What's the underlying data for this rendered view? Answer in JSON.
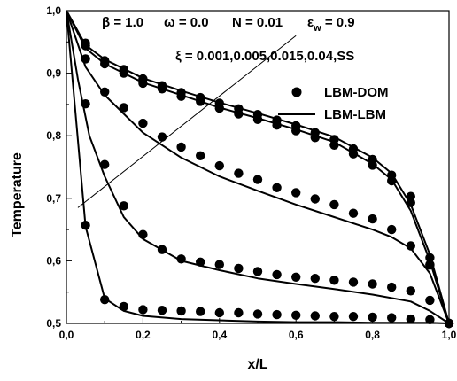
{
  "chart_data": {
    "type": "line",
    "xlabel": "x/L",
    "ylabel": "Temperature",
    "xlim": [
      0.0,
      1.0
    ],
    "ylim": [
      0.5,
      1.0
    ],
    "x_ticks": [
      "0,0",
      "0,2",
      "0,4",
      "0,6",
      "0,8",
      "1,0"
    ],
    "y_ticks": [
      "0,5",
      "0,6",
      "0,7",
      "0,8",
      "0,9",
      "1,0"
    ],
    "parameters": {
      "beta": "β = 1.0",
      "omega": "ω = 0.0",
      "N": "N = 0.01",
      "epsilon_w": "ε",
      "epsilon_w_sub": "w",
      "epsilon_w_value": " = 0.9",
      "xi": "ξ = 0.001,0.005,0.015,0.04,SS"
    },
    "legend": {
      "position": "right",
      "entries": [
        {
          "label": "LBM-DOM",
          "marker": "circle"
        },
        {
          "label": "LBM-LBM",
          "marker": "line"
        }
      ]
    },
    "series": [
      {
        "line": [
          [
            0,
            1.0
          ],
          [
            0.05,
            0.655
          ],
          [
            0.1,
            0.54
          ],
          [
            0.15,
            0.52
          ],
          [
            0.2,
            0.512
          ],
          [
            0.3,
            0.507
          ],
          [
            0.4,
            0.505
          ],
          [
            0.5,
            0.503
          ],
          [
            0.6,
            0.502
          ],
          [
            0.7,
            0.502
          ],
          [
            0.8,
            0.501
          ],
          [
            0.9,
            0.501
          ],
          [
            0.95,
            0.501
          ],
          [
            1.0,
            0.5
          ]
        ],
        "points": [
          [
            0.05,
            0.657
          ],
          [
            0.1,
            0.538
          ],
          [
            0.15,
            0.527
          ],
          [
            0.2,
            0.522
          ],
          [
            0.25,
            0.521
          ],
          [
            0.3,
            0.52
          ],
          [
            0.35,
            0.519
          ],
          [
            0.4,
            0.517
          ],
          [
            0.45,
            0.517
          ],
          [
            0.5,
            0.515
          ],
          [
            0.55,
            0.514
          ],
          [
            0.6,
            0.513
          ],
          [
            0.65,
            0.512
          ],
          [
            0.7,
            0.511
          ],
          [
            0.75,
            0.511
          ],
          [
            0.8,
            0.51
          ],
          [
            0.85,
            0.509
          ],
          [
            0.9,
            0.507
          ],
          [
            0.95,
            0.506
          ],
          [
            1.0,
            0.5
          ]
        ]
      },
      {
        "line": [
          [
            0,
            1.0
          ],
          [
            0.03,
            0.89
          ],
          [
            0.06,
            0.8
          ],
          [
            0.1,
            0.735
          ],
          [
            0.15,
            0.67
          ],
          [
            0.2,
            0.635
          ],
          [
            0.3,
            0.6
          ],
          [
            0.4,
            0.585
          ],
          [
            0.5,
            0.572
          ],
          [
            0.6,
            0.563
          ],
          [
            0.7,
            0.555
          ],
          [
            0.8,
            0.546
          ],
          [
            0.9,
            0.535
          ],
          [
            0.95,
            0.52
          ],
          [
            1.0,
            0.5
          ]
        ],
        "points": [
          [
            0.05,
            0.851
          ],
          [
            0.1,
            0.754
          ],
          [
            0.15,
            0.688
          ],
          [
            0.2,
            0.642
          ],
          [
            0.25,
            0.618
          ],
          [
            0.3,
            0.603
          ],
          [
            0.35,
            0.598
          ],
          [
            0.4,
            0.594
          ],
          [
            0.45,
            0.588
          ],
          [
            0.5,
            0.583
          ],
          [
            0.55,
            0.578
          ],
          [
            0.6,
            0.574
          ],
          [
            0.65,
            0.572
          ],
          [
            0.7,
            0.569
          ],
          [
            0.75,
            0.566
          ],
          [
            0.8,
            0.563
          ],
          [
            0.85,
            0.558
          ],
          [
            0.9,
            0.552
          ],
          [
            0.95,
            0.537
          ],
          [
            1.0,
            0.5
          ]
        ]
      },
      {
        "line": [
          [
            0,
            1.0
          ],
          [
            0.05,
            0.91
          ],
          [
            0.1,
            0.865
          ],
          [
            0.2,
            0.805
          ],
          [
            0.3,
            0.765
          ],
          [
            0.4,
            0.735
          ],
          [
            0.5,
            0.712
          ],
          [
            0.6,
            0.69
          ],
          [
            0.7,
            0.67
          ],
          [
            0.8,
            0.65
          ],
          [
            0.85,
            0.638
          ],
          [
            0.9,
            0.62
          ],
          [
            0.95,
            0.58
          ],
          [
            1.0,
            0.5
          ]
        ],
        "points": [
          [
            0.05,
            0.923
          ],
          [
            0.1,
            0.87
          ],
          [
            0.15,
            0.845
          ],
          [
            0.2,
            0.82
          ],
          [
            0.25,
            0.798
          ],
          [
            0.3,
            0.782
          ],
          [
            0.35,
            0.768
          ],
          [
            0.4,
            0.752
          ],
          [
            0.45,
            0.74
          ],
          [
            0.5,
            0.73
          ],
          [
            0.55,
            0.717
          ],
          [
            0.6,
            0.709
          ],
          [
            0.65,
            0.699
          ],
          [
            0.7,
            0.69
          ],
          [
            0.75,
            0.676
          ],
          [
            0.8,
            0.667
          ],
          [
            0.85,
            0.65
          ],
          [
            0.9,
            0.624
          ],
          [
            0.95,
            0.593
          ],
          [
            1.0,
            0.5
          ]
        ]
      },
      {
        "line": [
          [
            0,
            1.0
          ],
          [
            0.05,
            0.94
          ],
          [
            0.1,
            0.915
          ],
          [
            0.2,
            0.885
          ],
          [
            0.3,
            0.865
          ],
          [
            0.4,
            0.845
          ],
          [
            0.5,
            0.828
          ],
          [
            0.6,
            0.81
          ],
          [
            0.7,
            0.79
          ],
          [
            0.8,
            0.755
          ],
          [
            0.85,
            0.73
          ],
          [
            0.9,
            0.68
          ],
          [
            0.95,
            0.6
          ],
          [
            1.0,
            0.5
          ]
        ],
        "points": [
          [
            0.05,
            0.944
          ],
          [
            0.1,
            0.915
          ],
          [
            0.15,
            0.9
          ],
          [
            0.2,
            0.884
          ],
          [
            0.25,
            0.875
          ],
          [
            0.3,
            0.863
          ],
          [
            0.35,
            0.855
          ],
          [
            0.4,
            0.844
          ],
          [
            0.45,
            0.835
          ],
          [
            0.5,
            0.826
          ],
          [
            0.55,
            0.817
          ],
          [
            0.6,
            0.808
          ],
          [
            0.65,
            0.797
          ],
          [
            0.7,
            0.785
          ],
          [
            0.75,
            0.771
          ],
          [
            0.8,
            0.753
          ],
          [
            0.85,
            0.728
          ],
          [
            0.9,
            0.693
          ],
          [
            0.95,
            0.594
          ],
          [
            1.0,
            0.5
          ]
        ]
      },
      {
        "line": [
          [
            0,
            1.0
          ],
          [
            0.05,
            0.945
          ],
          [
            0.1,
            0.922
          ],
          [
            0.2,
            0.892
          ],
          [
            0.3,
            0.872
          ],
          [
            0.4,
            0.853
          ],
          [
            0.5,
            0.836
          ],
          [
            0.6,
            0.818
          ],
          [
            0.7,
            0.798
          ],
          [
            0.8,
            0.765
          ],
          [
            0.85,
            0.74
          ],
          [
            0.9,
            0.69
          ],
          [
            0.95,
            0.61
          ],
          [
            1.0,
            0.5
          ]
        ],
        "points": [
          [
            0.05,
            0.948
          ],
          [
            0.1,
            0.92
          ],
          [
            0.15,
            0.906
          ],
          [
            0.2,
            0.891
          ],
          [
            0.25,
            0.88
          ],
          [
            0.3,
            0.869
          ],
          [
            0.35,
            0.861
          ],
          [
            0.4,
            0.852
          ],
          [
            0.45,
            0.843
          ],
          [
            0.5,
            0.834
          ],
          [
            0.55,
            0.825
          ],
          [
            0.6,
            0.816
          ],
          [
            0.65,
            0.805
          ],
          [
            0.7,
            0.794
          ],
          [
            0.75,
            0.779
          ],
          [
            0.8,
            0.762
          ],
          [
            0.85,
            0.737
          ],
          [
            0.9,
            0.703
          ],
          [
            0.95,
            0.605
          ],
          [
            1.0,
            0.5
          ]
        ]
      }
    ],
    "annotation_arrow": {
      "x1": 0.03,
      "y1": 0.685,
      "x2": 0.6,
      "y2": 0.96
    }
  }
}
